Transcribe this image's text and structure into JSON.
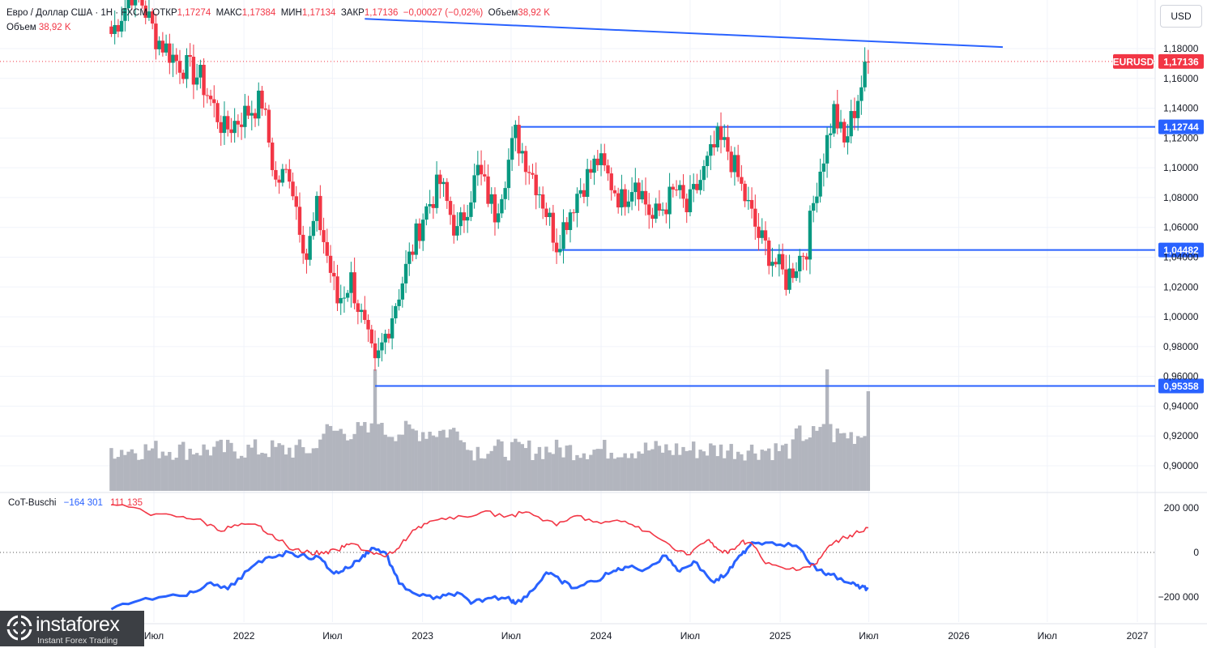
{
  "header": {
    "pair": "Евро / Доллар США",
    "interval": "1Н",
    "source": "FXCM",
    "open_label": "ОТКР",
    "open": "1,17274",
    "high_label": "МАКС",
    "high": "1,17384",
    "low_label": "МИН",
    "low": "1,17134",
    "close_label": "ЗАКР",
    "close": "1,17136",
    "change": "−0,00027 (−0,02%)",
    "volume_label": "Объем",
    "volume": "38,92 K",
    "volume_row_label": "Объем",
    "volume_row_value": "38,92 K"
  },
  "currency_button": "USD",
  "indicator": {
    "name": "CoT-Buschi",
    "blue_value": "−164 301",
    "red_value": "111 135"
  },
  "logo": {
    "brand": "instaforex",
    "tagline": "Instant Forex Trading"
  },
  "colors": {
    "bull": "#089981",
    "bear": "#f23645",
    "level": "#2962ff",
    "volume": "#b2b5be",
    "cot_blue": "#2962ff",
    "cot_red": "#f23645",
    "grid": "#f0f3fa"
  },
  "chart_data": [
    {
      "type": "candlestick",
      "title": "Евро / Доллар США · 1Н · FXCM",
      "x_axis_labels": [
        "Июл",
        "2022",
        "Июл",
        "2023",
        "Июл",
        "2024",
        "Июл",
        "2025",
        "Июл",
        "2026",
        "Июл",
        "2027"
      ],
      "x_axis_dates": [
        "2021-07-01",
        "2022-01-01",
        "2022-07-01",
        "2023-01-01",
        "2023-07-01",
        "2024-01-01",
        "2024-07-01",
        "2025-01-01",
        "2025-07-01",
        "2026-01-01",
        "2026-07-01",
        "2027-01-01"
      ],
      "y_axis_labels": [
        "1,18000",
        "1,16000",
        "1,14000",
        "1,12000",
        "1,10000",
        "1,08000",
        "1,06000",
        "1,04000",
        "1,02000",
        "1,00000",
        "0,98000",
        "0,96000",
        "0,94000",
        "0,92000",
        "0,90000"
      ],
      "ylim": [
        0.885,
        1.205
      ],
      "last_price": {
        "symbol": "EURUSD",
        "value": 1.17136,
        "label": "1,17136"
      },
      "horizontal_levels": [
        {
          "value": 1.12744,
          "label": "1,12744",
          "from": "2023-07-10"
        },
        {
          "value": 1.04482,
          "label": "1,04482",
          "from": "2023-10-02"
        },
        {
          "value": 0.95358,
          "label": "0,95358",
          "from": "2022-09-26"
        }
      ],
      "trendline": {
        "from": [
          "2022-09-05",
          1.2
        ],
        "to": [
          "2026-04-01",
          1.181
        ]
      },
      "close_anchors": [
        [
          "2021-04-05",
          1.19
        ],
        [
          "2021-05-24",
          1.222
        ],
        [
          "2021-07-05",
          1.188
        ],
        [
          "2021-08-16",
          1.172
        ],
        [
          "2021-10-04",
          1.16
        ],
        [
          "2021-11-22",
          1.125
        ],
        [
          "2022-01-10",
          1.138
        ],
        [
          "2022-02-07",
          1.145
        ],
        [
          "2022-03-07",
          1.09
        ],
        [
          "2022-04-04",
          1.098
        ],
        [
          "2022-05-09",
          1.04
        ],
        [
          "2022-05-30",
          1.072
        ],
        [
          "2022-07-11",
          1.01
        ],
        [
          "2022-08-08",
          1.025
        ],
        [
          "2022-09-26",
          0.965
        ],
        [
          "2022-11-07",
          1.01
        ],
        [
          "2023-01-02",
          1.068
        ],
        [
          "2023-02-06",
          1.09
        ],
        [
          "2023-03-13",
          1.055
        ],
        [
          "2023-04-24",
          1.098
        ],
        [
          "2023-05-29",
          1.07
        ],
        [
          "2023-07-10",
          1.122
        ],
        [
          "2023-08-28",
          1.085
        ],
        [
          "2023-10-02",
          1.05
        ],
        [
          "2023-11-13",
          1.083
        ],
        [
          "2023-12-25",
          1.105
        ],
        [
          "2024-02-12",
          1.078
        ],
        [
          "2024-03-11",
          1.094
        ],
        [
          "2024-04-15",
          1.065
        ],
        [
          "2024-06-03",
          1.085
        ],
        [
          "2024-06-24",
          1.071
        ],
        [
          "2024-08-26",
          1.118
        ],
        [
          "2024-09-16",
          1.112
        ],
        [
          "2024-11-18",
          1.054
        ],
        [
          "2025-01-13",
          1.025
        ],
        [
          "2025-02-24",
          1.048
        ],
        [
          "2025-03-17",
          1.09
        ],
        [
          "2025-04-21",
          1.138
        ],
        [
          "2025-05-12",
          1.115
        ],
        [
          "2025-06-09",
          1.148
        ],
        [
          "2025-06-30",
          1.171
        ]
      ]
    },
    {
      "type": "bar",
      "title": "Объем",
      "values_note": "relative weekly tick volume",
      "peaks": [
        [
          "2022-09-26",
          1.0
        ],
        [
          "2025-04-07",
          1.0
        ],
        [
          "2025-06-30",
          0.82
        ]
      ]
    },
    {
      "type": "line",
      "title": "CoT-Buschi",
      "y_axis_labels": [
        "200 000",
        "0",
        "−200 000"
      ],
      "ylim": [
        -280000,
        250000
      ],
      "series": [
        {
          "name": "−164 301",
          "color": "#2962ff",
          "points": [
            [
              "2021-04-05",
              -255000
            ],
            [
              "2021-06-14",
              -205000
            ],
            [
              "2021-09-06",
              -195000
            ],
            [
              "2021-10-18",
              -140000
            ],
            [
              "2021-11-29",
              -165000
            ],
            [
              "2022-01-10",
              -80000
            ],
            [
              "2022-02-21",
              -20000
            ],
            [
              "2022-04-04",
              0
            ],
            [
              "2022-05-09",
              -20000
            ],
            [
              "2022-06-06",
              -25000
            ],
            [
              "2022-07-04",
              -95000
            ],
            [
              "2022-08-01",
              -70000
            ],
            [
              "2022-08-29",
              -25000
            ],
            [
              "2022-09-19",
              20000
            ],
            [
              "2022-10-17",
              0
            ],
            [
              "2022-11-14",
              -140000
            ],
            [
              "2022-12-26",
              -195000
            ],
            [
              "2023-02-06",
              -205000
            ],
            [
              "2023-03-13",
              -180000
            ],
            [
              "2023-04-10",
              -230000
            ],
            [
              "2023-05-15",
              -205000
            ],
            [
              "2023-06-26",
              -200000
            ],
            [
              "2023-07-10",
              -230000
            ],
            [
              "2023-08-14",
              -170000
            ],
            [
              "2023-09-11",
              -90000
            ],
            [
              "2023-10-09",
              -125000
            ],
            [
              "2023-11-06",
              -160000
            ],
            [
              "2023-12-18",
              -130000
            ],
            [
              "2024-01-22",
              -90000
            ],
            [
              "2024-02-19",
              -65000
            ],
            [
              "2024-04-01",
              -75000
            ],
            [
              "2024-05-13",
              -15000
            ],
            [
              "2024-06-10",
              -85000
            ],
            [
              "2024-07-08",
              -40000
            ],
            [
              "2024-08-19",
              -135000
            ],
            [
              "2024-09-16",
              -90000
            ],
            [
              "2024-10-14",
              -10000
            ],
            [
              "2024-11-04",
              45000
            ],
            [
              "2024-12-16",
              45000
            ],
            [
              "2025-02-03",
              30000
            ],
            [
              "2025-03-17",
              -80000
            ],
            [
              "2025-04-14",
              -100000
            ],
            [
              "2025-05-26",
              -140000
            ],
            [
              "2025-06-16",
              -155000
            ],
            [
              "2025-06-30",
              -164301
            ]
          ]
        },
        {
          "name": "111 135",
          "color": "#f23645",
          "points": [
            [
              "2021-04-05",
              215000
            ],
            [
              "2021-06-14",
              180000
            ],
            [
              "2021-08-16",
              160000
            ],
            [
              "2021-09-27",
              150000
            ],
            [
              "2021-11-08",
              100000
            ],
            [
              "2021-12-20",
              120000
            ],
            [
              "2022-01-31",
              120000
            ],
            [
              "2022-02-28",
              80000
            ],
            [
              "2022-04-11",
              10000
            ],
            [
              "2022-05-16",
              0
            ],
            [
              "2022-06-13",
              -5000
            ],
            [
              "2022-07-11",
              10000
            ],
            [
              "2022-08-08",
              40000
            ],
            [
              "2022-09-19",
              0
            ],
            [
              "2022-10-17",
              -20000
            ],
            [
              "2022-11-14",
              20000
            ],
            [
              "2022-12-12",
              100000
            ],
            [
              "2023-01-16",
              140000
            ],
            [
              "2023-03-06",
              150000
            ],
            [
              "2023-05-01",
              180000
            ],
            [
              "2023-06-26",
              165000
            ],
            [
              "2023-08-07",
              180000
            ],
            [
              "2023-10-02",
              120000
            ],
            [
              "2023-11-13",
              165000
            ],
            [
              "2024-01-01",
              130000
            ],
            [
              "2024-02-19",
              140000
            ],
            [
              "2024-04-01",
              95000
            ],
            [
              "2024-05-20",
              35000
            ],
            [
              "2024-06-24",
              -10000
            ],
            [
              "2024-08-05",
              55000
            ],
            [
              "2024-08-26",
              15000
            ],
            [
              "2024-09-16",
              -5000
            ],
            [
              "2024-10-14",
              50000
            ],
            [
              "2024-11-04",
              40000
            ],
            [
              "2024-12-02",
              -50000
            ],
            [
              "2025-01-13",
              -75000
            ],
            [
              "2025-02-24",
              -65000
            ],
            [
              "2025-03-17",
              -50000
            ],
            [
              "2025-04-07",
              20000
            ],
            [
              "2025-05-05",
              60000
            ],
            [
              "2025-06-02",
              85000
            ],
            [
              "2025-06-30",
              111135
            ]
          ]
        }
      ]
    }
  ]
}
